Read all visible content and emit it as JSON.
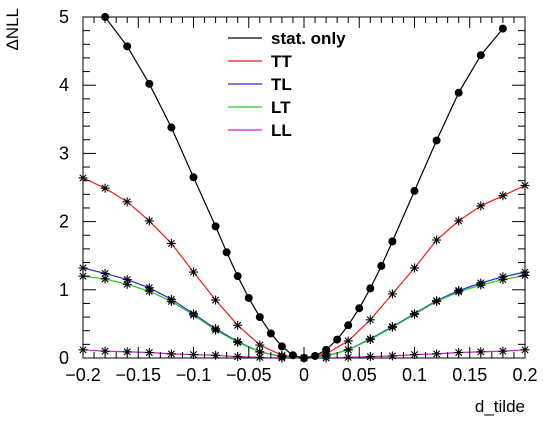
{
  "chart_data": {
    "type": "line",
    "xlabel": "d_tilde",
    "ylabel": "ΔNLL",
    "xlim": [
      -0.2,
      0.2
    ],
    "ylim": [
      0,
      5
    ],
    "x_ticks": [
      -0.2,
      -0.15,
      -0.1,
      -0.05,
      0,
      0.05,
      0.1,
      0.15,
      0.2
    ],
    "x_tick_labels": [
      "−0.2",
      "−0.15",
      "−0.1",
      "−0.05",
      "0",
      "0.05",
      "0.1",
      "0.15",
      "0.2"
    ],
    "y_ticks": [
      0,
      1,
      2,
      3,
      4,
      5
    ],
    "y_tick_labels": [
      "0",
      "1",
      "2",
      "3",
      "4",
      "5"
    ],
    "legend_position": "top-center",
    "series": [
      {
        "name": "stat. only",
        "color": "#000000",
        "marker": "filled-circle",
        "x": [
          -0.18,
          -0.16,
          -0.14,
          -0.12,
          -0.1,
          -0.08,
          -0.07,
          -0.06,
          -0.05,
          -0.04,
          -0.03,
          -0.02,
          -0.01,
          0,
          0.01,
          0.02,
          0.03,
          0.04,
          0.05,
          0.06,
          0.07,
          0.08,
          0.1,
          0.12,
          0.14,
          0.16,
          0.18
        ],
        "y": [
          5.0,
          4.57,
          4.02,
          3.38,
          2.65,
          1.93,
          1.55,
          1.2,
          0.88,
          0.6,
          0.36,
          0.17,
          0.04,
          0.0,
          0.03,
          0.12,
          0.27,
          0.48,
          0.73,
          1.02,
          1.35,
          1.71,
          2.45,
          3.19,
          3.89,
          4.44,
          4.83
        ]
      },
      {
        "name": "TT",
        "color": "#ee1c1c",
        "marker": "star",
        "x": [
          -0.2,
          -0.18,
          -0.16,
          -0.14,
          -0.12,
          -0.1,
          -0.08,
          -0.06,
          -0.04,
          -0.02,
          0,
          0.02,
          0.04,
          0.06,
          0.08,
          0.1,
          0.12,
          0.14,
          0.16,
          0.18,
          0.2
        ],
        "y": [
          2.64,
          2.49,
          2.29,
          2.01,
          1.68,
          1.26,
          0.85,
          0.48,
          0.19,
          0.04,
          0.0,
          0.06,
          0.25,
          0.56,
          0.94,
          1.32,
          1.73,
          2.01,
          2.23,
          2.38,
          2.53
        ]
      },
      {
        "name": "TL",
        "color": "#2828ee",
        "marker": "star",
        "x": [
          -0.2,
          -0.18,
          -0.16,
          -0.14,
          -0.12,
          -0.1,
          -0.08,
          -0.06,
          -0.04,
          -0.02,
          0,
          0.02,
          0.04,
          0.06,
          0.08,
          0.1,
          0.12,
          0.14,
          0.16,
          0.18,
          0.2
        ],
        "y": [
          1.32,
          1.24,
          1.15,
          1.03,
          0.86,
          0.65,
          0.43,
          0.24,
          0.09,
          0.02,
          0.0,
          0.03,
          0.12,
          0.28,
          0.46,
          0.65,
          0.84,
          0.99,
          1.1,
          1.19,
          1.26
        ]
      },
      {
        "name": "LT",
        "color": "#22cc22",
        "marker": "star",
        "x": [
          -0.2,
          -0.18,
          -0.16,
          -0.14,
          -0.12,
          -0.1,
          -0.08,
          -0.06,
          -0.04,
          -0.02,
          0,
          0.02,
          0.04,
          0.06,
          0.08,
          0.1,
          0.12,
          0.14,
          0.16,
          0.18,
          0.2
        ],
        "y": [
          1.2,
          1.16,
          1.08,
          0.98,
          0.83,
          0.63,
          0.41,
          0.23,
          0.09,
          0.02,
          0.0,
          0.03,
          0.12,
          0.27,
          0.45,
          0.64,
          0.83,
          0.97,
          1.07,
          1.15,
          1.21
        ]
      },
      {
        "name": "LL",
        "color": "#cc22cc",
        "marker": "star",
        "x": [
          -0.2,
          -0.18,
          -0.16,
          -0.14,
          -0.12,
          -0.1,
          -0.08,
          -0.06,
          -0.04,
          -0.02,
          0,
          0.02,
          0.04,
          0.06,
          0.08,
          0.1,
          0.12,
          0.14,
          0.16,
          0.18,
          0.2
        ],
        "y": [
          0.12,
          0.1,
          0.09,
          0.08,
          0.06,
          0.05,
          0.04,
          0.02,
          0.01,
          0.0,
          0.0,
          0.0,
          0.01,
          0.02,
          0.03,
          0.05,
          0.06,
          0.08,
          0.09,
          0.1,
          0.12
        ]
      }
    ]
  }
}
